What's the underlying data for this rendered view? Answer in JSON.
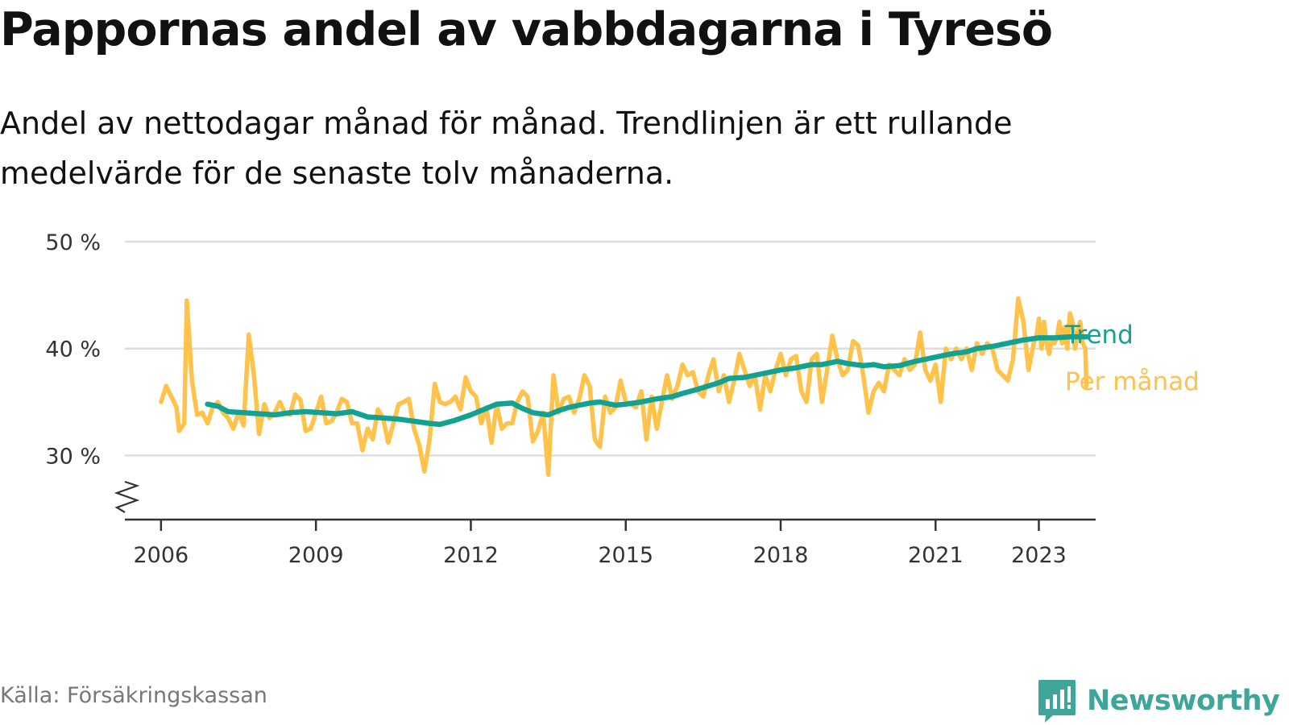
{
  "title": "Pappornas andel av vabbdagarna i Tyresö",
  "subtitle": "Andel av nettodagar månad för månad. Trendlinjen är ett rullande medelvärde för de senaste tolv månaderna.",
  "source": "Källa: Försäkringskassan",
  "brand": {
    "name": "Newsworthy",
    "icon": "newsworthy-logo-icon",
    "color": "#3fa598"
  },
  "colors": {
    "monthly": "#ffc24b",
    "trend": "#13a292",
    "grid": "#dddddd",
    "axis": "#333333",
    "source": "#777777"
  },
  "chart_data": {
    "type": "line",
    "x_unit": "year (decimal)",
    "y_unit": "percent",
    "xlim": [
      2005.3,
      2024.1
    ],
    "ylim": [
      24,
      50
    ],
    "y_ticks": [
      30,
      40,
      50
    ],
    "y_tick_labels": [
      "30 %",
      "40 %",
      "50 %"
    ],
    "x_ticks": [
      2006,
      2009,
      2012,
      2015,
      2018,
      2021,
      2023
    ],
    "x_tick_labels": [
      "2006",
      "2009",
      "2012",
      "2015",
      "2018",
      "2021",
      "2023"
    ],
    "y_axis_break": true,
    "grid": "horizontal",
    "legend": "inline labels at line ends",
    "series": [
      {
        "name": "Per månad",
        "color": "#ffc24b",
        "points": [
          [
            2006.0,
            35
          ],
          [
            2006.1,
            36.5
          ],
          [
            2006.2,
            35.5
          ],
          [
            2006.3,
            34.5
          ],
          [
            2006.35,
            32.3
          ],
          [
            2006.45,
            33.0
          ],
          [
            2006.5,
            44.5
          ],
          [
            2006.6,
            37.0
          ],
          [
            2006.7,
            33.8
          ],
          [
            2006.8,
            34.0
          ],
          [
            2006.9,
            33.0
          ],
          [
            2007.0,
            34.5
          ],
          [
            2007.1,
            35.0
          ],
          [
            2007.2,
            34.0
          ],
          [
            2007.3,
            33.5
          ],
          [
            2007.4,
            32.5
          ],
          [
            2007.5,
            34.0
          ],
          [
            2007.6,
            32.8
          ],
          [
            2007.7,
            41.3
          ],
          [
            2007.8,
            37.5
          ],
          [
            2007.9,
            32.0
          ],
          [
            2008.0,
            34.8
          ],
          [
            2008.1,
            33.5
          ],
          [
            2008.2,
            34.0
          ],
          [
            2008.3,
            35.0
          ],
          [
            2008.4,
            34.0
          ],
          [
            2008.5,
            33.8
          ],
          [
            2008.6,
            35.7
          ],
          [
            2008.7,
            35.2
          ],
          [
            2008.8,
            32.3
          ],
          [
            2008.9,
            32.5
          ],
          [
            2009.0,
            34.0
          ],
          [
            2009.1,
            35.5
          ],
          [
            2009.2,
            33.0
          ],
          [
            2009.3,
            33.2
          ],
          [
            2009.4,
            34.0
          ],
          [
            2009.5,
            35.3
          ],
          [
            2009.6,
            35.0
          ],
          [
            2009.7,
            33.0
          ],
          [
            2009.8,
            33.0
          ],
          [
            2009.9,
            30.5
          ],
          [
            2010.0,
            32.5
          ],
          [
            2010.1,
            31.5
          ],
          [
            2010.2,
            34.3
          ],
          [
            2010.3,
            33.5
          ],
          [
            2010.4,
            31.2
          ],
          [
            2010.5,
            33.0
          ],
          [
            2010.6,
            34.8
          ],
          [
            2010.7,
            35.0
          ],
          [
            2010.8,
            35.3
          ],
          [
            2010.9,
            32.5
          ],
          [
            2011.0,
            31.0
          ],
          [
            2011.1,
            28.5
          ],
          [
            2011.2,
            31.5
          ],
          [
            2011.3,
            36.7
          ],
          [
            2011.4,
            35.0
          ],
          [
            2011.5,
            34.8
          ],
          [
            2011.6,
            35.0
          ],
          [
            2011.7,
            35.5
          ],
          [
            2011.8,
            34.3
          ],
          [
            2011.9,
            37.3
          ],
          [
            2012.0,
            36.0
          ],
          [
            2012.1,
            35.5
          ],
          [
            2012.2,
            33.0
          ],
          [
            2012.3,
            34.5
          ],
          [
            2012.4,
            31.2
          ],
          [
            2012.5,
            34.8
          ],
          [
            2012.6,
            32.5
          ],
          [
            2012.7,
            33.0
          ],
          [
            2012.8,
            33.0
          ],
          [
            2012.9,
            35.0
          ],
          [
            2013.0,
            36.0
          ],
          [
            2013.1,
            35.5
          ],
          [
            2013.2,
            31.3
          ],
          [
            2013.3,
            32.3
          ],
          [
            2013.4,
            34.0
          ],
          [
            2013.5,
            28.2
          ],
          [
            2013.6,
            37.5
          ],
          [
            2013.7,
            34.0
          ],
          [
            2013.8,
            35.3
          ],
          [
            2013.9,
            35.5
          ],
          [
            2014.0,
            34.0
          ],
          [
            2014.1,
            35.3
          ],
          [
            2014.2,
            37.5
          ],
          [
            2014.3,
            36.5
          ],
          [
            2014.4,
            31.5
          ],
          [
            2014.5,
            30.8
          ],
          [
            2014.6,
            35.5
          ],
          [
            2014.7,
            34.0
          ],
          [
            2014.8,
            34.5
          ],
          [
            2014.9,
            37.0
          ],
          [
            2015.0,
            35.0
          ],
          [
            2015.1,
            34.8
          ],
          [
            2015.2,
            34.5
          ],
          [
            2015.3,
            36.0
          ],
          [
            2015.4,
            31.5
          ],
          [
            2015.5,
            35.5
          ],
          [
            2015.6,
            32.5
          ],
          [
            2015.7,
            35.0
          ],
          [
            2015.8,
            37.5
          ],
          [
            2015.9,
            35.3
          ],
          [
            2016.0,
            36.5
          ],
          [
            2016.1,
            38.5
          ],
          [
            2016.2,
            37.5
          ],
          [
            2016.3,
            37.8
          ],
          [
            2016.4,
            36.0
          ],
          [
            2016.5,
            35.5
          ],
          [
            2016.6,
            37.5
          ],
          [
            2016.7,
            39.0
          ],
          [
            2016.8,
            36.0
          ],
          [
            2016.9,
            37.5
          ],
          [
            2017.0,
            35.0
          ],
          [
            2017.1,
            37.0
          ],
          [
            2017.2,
            39.5
          ],
          [
            2017.3,
            38.0
          ],
          [
            2017.4,
            36.5
          ],
          [
            2017.5,
            37.5
          ],
          [
            2017.6,
            34.3
          ],
          [
            2017.7,
            37.5
          ],
          [
            2017.8,
            36.0
          ],
          [
            2017.9,
            38.0
          ],
          [
            2018.0,
            39.5
          ],
          [
            2018.1,
            37.5
          ],
          [
            2018.2,
            39.0
          ],
          [
            2018.3,
            39.3
          ],
          [
            2018.4,
            36.0
          ],
          [
            2018.5,
            35.0
          ],
          [
            2018.6,
            39.0
          ],
          [
            2018.7,
            39.5
          ],
          [
            2018.8,
            35.0
          ],
          [
            2018.9,
            38.0
          ],
          [
            2019.0,
            41.2
          ],
          [
            2019.1,
            39.0
          ],
          [
            2019.2,
            37.5
          ],
          [
            2019.3,
            38.0
          ],
          [
            2019.4,
            40.7
          ],
          [
            2019.5,
            40.3
          ],
          [
            2019.6,
            37.5
          ],
          [
            2019.7,
            34.0
          ],
          [
            2019.8,
            36.0
          ],
          [
            2019.9,
            36.8
          ],
          [
            2020.0,
            36.0
          ],
          [
            2020.1,
            38.5
          ],
          [
            2020.2,
            38.0
          ],
          [
            2020.3,
            37.5
          ],
          [
            2020.4,
            39.0
          ],
          [
            2020.5,
            38.0
          ],
          [
            2020.6,
            38.5
          ],
          [
            2020.7,
            41.5
          ],
          [
            2020.8,
            38.0
          ],
          [
            2020.9,
            37.0
          ],
          [
            2021.0,
            38.5
          ],
          [
            2021.1,
            35.0
          ],
          [
            2021.2,
            40.0
          ],
          [
            2021.3,
            39.0
          ],
          [
            2021.4,
            40.0
          ],
          [
            2021.5,
            39.0
          ],
          [
            2021.6,
            40.0
          ],
          [
            2021.7,
            38.0
          ],
          [
            2021.8,
            40.5
          ],
          [
            2021.9,
            39.5
          ],
          [
            2022.0,
            40.5
          ],
          [
            2022.1,
            40.0
          ],
          [
            2022.2,
            38.0
          ],
          [
            2022.3,
            37.5
          ],
          [
            2022.4,
            37.0
          ],
          [
            2022.5,
            39.0
          ],
          [
            2022.6,
            44.7
          ],
          [
            2022.7,
            42.5
          ],
          [
            2022.8,
            38.0
          ],
          [
            2022.9,
            40.5
          ],
          [
            2022.95,
            41.0
          ],
          [
            2023.0,
            42.8
          ],
          [
            2023.05,
            40.0
          ],
          [
            2023.1,
            42.5
          ],
          [
            2023.15,
            40.5
          ],
          [
            2023.2,
            39.5
          ],
          [
            2023.25,
            41.0
          ],
          [
            2023.3,
            40.5
          ],
          [
            2023.35,
            41.0
          ],
          [
            2023.4,
            42.5
          ],
          [
            2023.45,
            40.5
          ],
          [
            2023.5,
            42.0
          ],
          [
            2023.55,
            40.0
          ],
          [
            2023.6,
            43.3
          ],
          [
            2023.65,
            42.5
          ],
          [
            2023.7,
            40.0
          ],
          [
            2023.75,
            41.5
          ],
          [
            2023.8,
            42.5
          ],
          [
            2023.85,
            40.5
          ],
          [
            2023.9,
            40.0
          ],
          [
            2023.92,
            36.5
          ]
        ]
      },
      {
        "name": "Trend",
        "color": "#13a292",
        "points": [
          [
            2006.9,
            34.8
          ],
          [
            2007.1,
            34.6
          ],
          [
            2007.3,
            34.1
          ],
          [
            2007.6,
            34.0
          ],
          [
            2007.9,
            33.9
          ],
          [
            2008.2,
            33.8
          ],
          [
            2008.5,
            34.0
          ],
          [
            2008.8,
            34.1
          ],
          [
            2009.1,
            34.0
          ],
          [
            2009.4,
            33.9
          ],
          [
            2009.7,
            34.1
          ],
          [
            2010.0,
            33.6
          ],
          [
            2010.3,
            33.5
          ],
          [
            2010.6,
            33.4
          ],
          [
            2010.9,
            33.2
          ],
          [
            2011.2,
            33.0
          ],
          [
            2011.4,
            32.9
          ],
          [
            2011.7,
            33.3
          ],
          [
            2012.0,
            33.8
          ],
          [
            2012.3,
            34.4
          ],
          [
            2012.5,
            34.8
          ],
          [
            2012.8,
            34.9
          ],
          [
            2013.0,
            34.4
          ],
          [
            2013.2,
            34.0
          ],
          [
            2013.5,
            33.8
          ],
          [
            2013.7,
            34.2
          ],
          [
            2013.9,
            34.5
          ],
          [
            2014.1,
            34.7
          ],
          [
            2014.3,
            34.9
          ],
          [
            2014.5,
            35.0
          ],
          [
            2014.8,
            34.7
          ],
          [
            2015.0,
            34.8
          ],
          [
            2015.3,
            35.0
          ],
          [
            2015.6,
            35.3
          ],
          [
            2015.9,
            35.5
          ],
          [
            2016.1,
            35.8
          ],
          [
            2016.4,
            36.2
          ],
          [
            2016.6,
            36.5
          ],
          [
            2016.8,
            36.8
          ],
          [
            2017.0,
            37.2
          ],
          [
            2017.3,
            37.3
          ],
          [
            2017.6,
            37.6
          ],
          [
            2017.8,
            37.8
          ],
          [
            2018.0,
            38.0
          ],
          [
            2018.3,
            38.2
          ],
          [
            2018.6,
            38.5
          ],
          [
            2018.8,
            38.5
          ],
          [
            2019.1,
            38.8
          ],
          [
            2019.3,
            38.6
          ],
          [
            2019.6,
            38.4
          ],
          [
            2019.8,
            38.5
          ],
          [
            2020.0,
            38.3
          ],
          [
            2020.3,
            38.4
          ],
          [
            2020.6,
            38.8
          ],
          [
            2020.8,
            39.0
          ],
          [
            2021.0,
            39.2
          ],
          [
            2021.3,
            39.5
          ],
          [
            2021.6,
            39.7
          ],
          [
            2021.8,
            40.0
          ],
          [
            2022.1,
            40.2
          ],
          [
            2022.4,
            40.5
          ],
          [
            2022.7,
            40.8
          ],
          [
            2023.0,
            41.0
          ],
          [
            2023.3,
            41.0
          ],
          [
            2023.6,
            41.1
          ],
          [
            2023.8,
            41.1
          ],
          [
            2023.95,
            41.1
          ]
        ]
      }
    ]
  }
}
